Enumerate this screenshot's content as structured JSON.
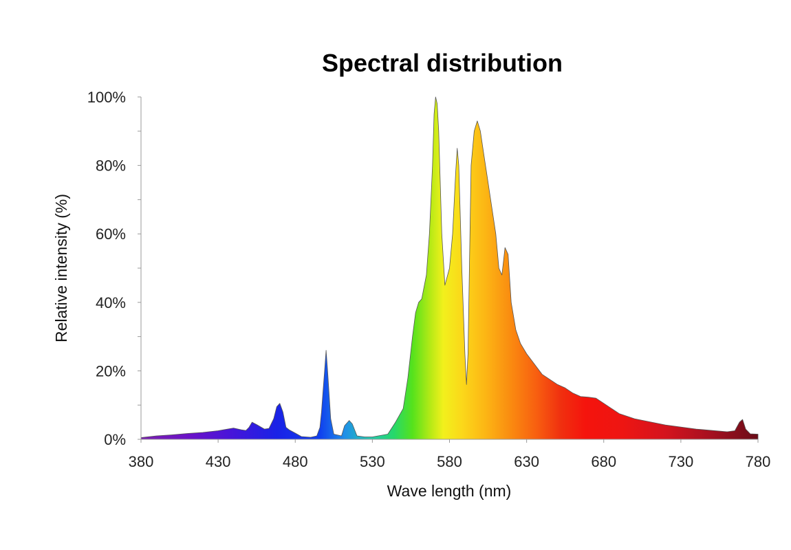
{
  "chart_data": {
    "type": "area",
    "title": "Spectral distribution",
    "xlabel": "Wave length (nm)",
    "ylabel": "Relative intensity (%)",
    "xlim": [
      380,
      780
    ],
    "ylim": [
      0,
      100
    ],
    "x_ticks": [
      380,
      430,
      480,
      530,
      580,
      630,
      680,
      730,
      780
    ],
    "y_ticks": [
      0,
      20,
      40,
      60,
      80,
      100
    ],
    "y_tick_labels": [
      "0%",
      "20%",
      "40%",
      "60%",
      "80%",
      "100%"
    ],
    "grid": false,
    "legend": "none",
    "fill": "spectral rainbow gradient (violet to dark red by wavelength)",
    "series": [
      {
        "x": [
          380,
          390,
          400,
          410,
          420,
          430,
          436,
          440,
          445,
          448,
          450,
          452,
          455,
          460,
          463,
          466,
          468,
          470,
          472,
          474,
          476,
          480,
          484,
          490,
          494,
          496,
          497,
          498,
          499,
          500,
          501,
          503,
          505,
          510,
          512,
          515,
          517,
          520,
          525,
          530,
          540,
          545,
          550,
          553,
          556,
          558,
          560,
          562,
          565,
          567,
          569,
          570,
          571,
          572,
          573,
          575,
          577,
          580,
          582,
          584,
          585,
          586,
          588,
          590,
          591,
          592,
          594,
          596,
          598,
          600,
          602,
          605,
          610,
          612,
          614,
          615,
          616,
          618,
          620,
          623,
          626,
          630,
          640,
          650,
          655,
          660,
          665,
          670,
          675,
          680,
          690,
          700,
          720,
          740,
          760,
          765,
          768,
          770,
          772,
          775,
          780
        ],
        "y": [
          0.5,
          1,
          1.3,
          1.7,
          2,
          2.5,
          3,
          3.3,
          2.8,
          2.6,
          3.5,
          5,
          4.3,
          3,
          3.2,
          6,
          9.5,
          10.5,
          8,
          3.5,
          2.8,
          1.8,
          0.8,
          0.6,
          1,
          3.5,
          8,
          14,
          20,
          26,
          20,
          6,
          1.5,
          1,
          4,
          5.5,
          4.5,
          1,
          0.7,
          0.7,
          1.5,
          5,
          9,
          18,
          30,
          37,
          40,
          41,
          48,
          60,
          80,
          95,
          100,
          98,
          90,
          60,
          45,
          50,
          60,
          78,
          85,
          80,
          50,
          25,
          16,
          25,
          80,
          90,
          93,
          90,
          84,
          75,
          60,
          50,
          48,
          52,
          56,
          54,
          40,
          32,
          28,
          25,
          19,
          16,
          15,
          13.5,
          12.5,
          12.3,
          12,
          10.5,
          7.5,
          6,
          4.2,
          3,
          2.2,
          2.5,
          5,
          5.8,
          3,
          1.6,
          1.5
        ]
      }
    ]
  }
}
